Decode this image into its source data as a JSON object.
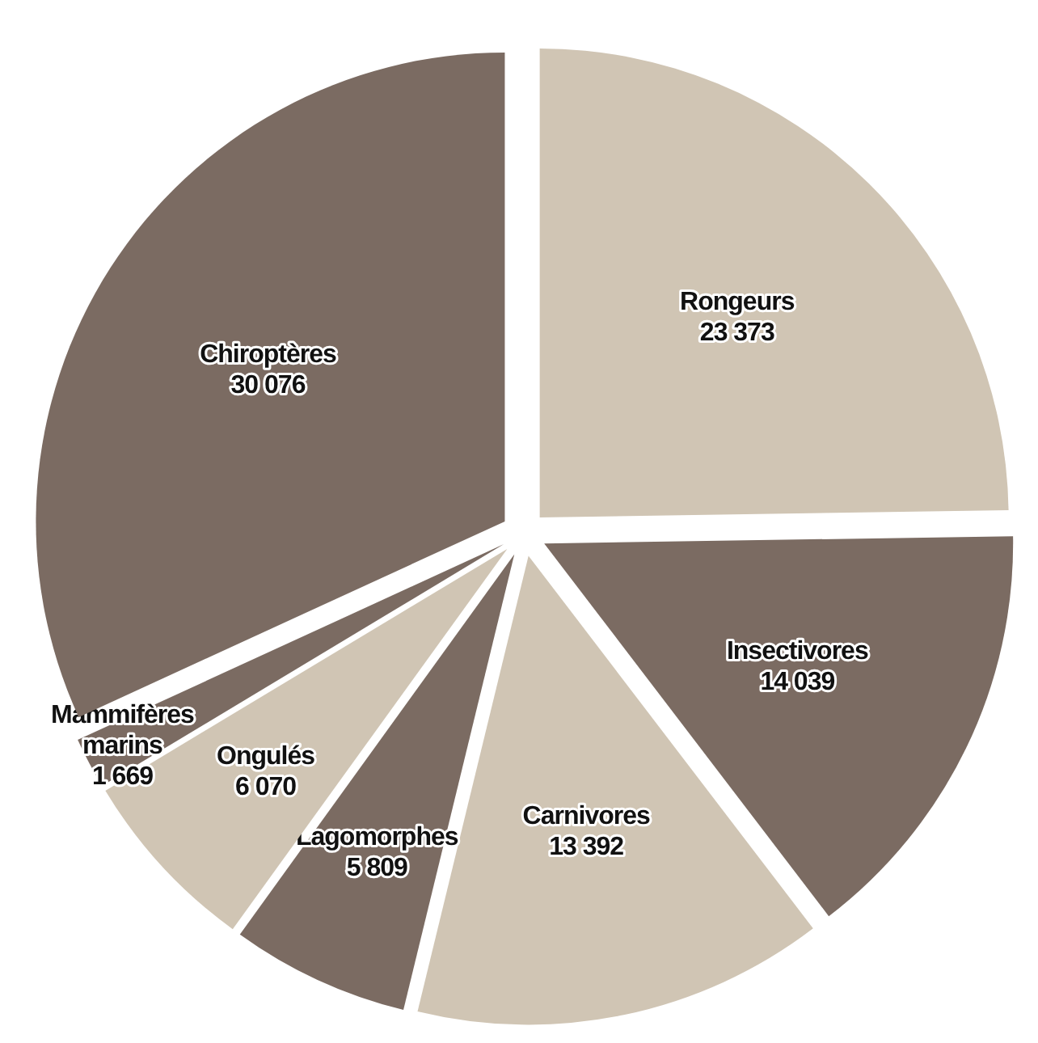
{
  "chart_data": {
    "type": "pie",
    "categories": [
      "Rongeurs",
      "Insectivores",
      "Carnivores",
      "Lagomorphes",
      "Ongulés",
      "Mammifères marins",
      "Chiroptères"
    ],
    "values": [
      23373,
      14039,
      13392,
      5809,
      6070,
      1669,
      30076
    ],
    "value_labels": [
      "23 373",
      "14 039",
      "13 392",
      "5 809",
      "6 070",
      "1 669",
      "30 076"
    ],
    "colors": [
      "#d0c5b4",
      "#7b6b62",
      "#d0c5b4",
      "#7b6b62",
      "#d0c5b4",
      "#7b6b62",
      "#7b6b62"
    ]
  }
}
